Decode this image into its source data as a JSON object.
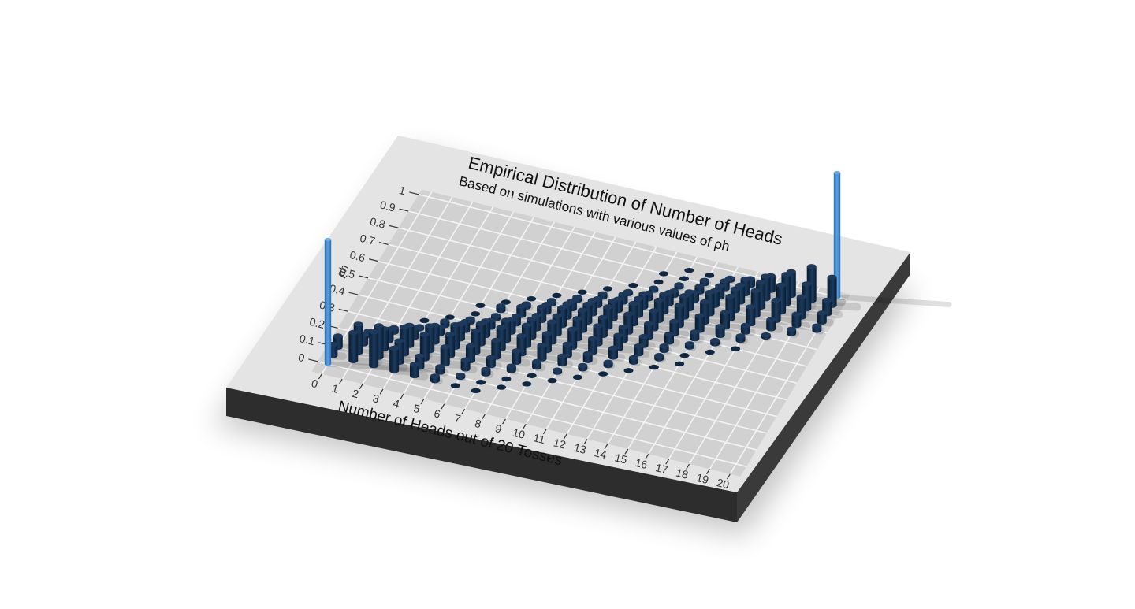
{
  "colors": {
    "page_background": "#ffffff",
    "panel_surface": "#e5e5e5",
    "panel_side": "#2f2f2f",
    "plot_background": "#d0d0d0",
    "grid_line": "#f2f2f2",
    "bar_color": "#0f2740",
    "highlight_bar_color": "#3a7fc4",
    "text": "#111111"
  },
  "chart_data": {
    "type": "bar",
    "style": "3d-rendered ggplot panel, tilted perspective",
    "title": "Empirical Distribution of Number of Heads",
    "subtitle": "Based on simulations with various values of ρh",
    "xlabel": "Number of Heads out of 20 Tosses",
    "ylabel": "ρh",
    "x_ticks": [
      "0",
      "1",
      "2",
      "3",
      "4",
      "5",
      "6",
      "7",
      "8",
      "9",
      "10",
      "11",
      "12",
      "13",
      "14",
      "15",
      "16",
      "17",
      "18",
      "19",
      "20"
    ],
    "y_ticks": [
      "0",
      "0.1",
      "0.2",
      "0.3",
      "0.4",
      "0.5",
      "0.6",
      "0.7",
      "0.8",
      "0.9",
      "1"
    ],
    "xlim": [
      0,
      20
    ],
    "ylim": [
      0,
      1
    ],
    "grid": true,
    "legend": "none",
    "series": [
      {
        "rho": 0.05,
        "heads": [
          0,
          1,
          2,
          3,
          4,
          5,
          6,
          7
        ],
        "heights": [
          0.1,
          0.25,
          0.3,
          0.2,
          0.1,
          0.04,
          0.01,
          0.005
        ]
      },
      {
        "rho": 0.1,
        "heads": [
          0,
          1,
          2,
          3,
          4,
          5,
          6,
          7,
          8
        ],
        "heights": [
          0.1,
          0.25,
          0.28,
          0.19,
          0.1,
          0.05,
          0.02,
          0.01,
          0.005
        ]
      },
      {
        "rho": 0.15,
        "heads": [
          1,
          2,
          3,
          4,
          5,
          6,
          7,
          8,
          9
        ],
        "heights": [
          0.08,
          0.18,
          0.24,
          0.22,
          0.15,
          0.08,
          0.04,
          0.01,
          0.005
        ]
      },
      {
        "rho": 0.2,
        "heads": [
          1,
          2,
          3,
          4,
          5,
          6,
          7,
          8,
          9,
          10
        ],
        "heights": [
          0.04,
          0.1,
          0.18,
          0.22,
          0.19,
          0.13,
          0.07,
          0.04,
          0.01,
          0.005
        ]
      },
      {
        "rho": 0.25,
        "heads": [
          2,
          3,
          4,
          5,
          6,
          7,
          8,
          9,
          10,
          11
        ],
        "heights": [
          0.04,
          0.08,
          0.15,
          0.2,
          0.19,
          0.15,
          0.1,
          0.05,
          0.02,
          0.005
        ]
      },
      {
        "rho": 0.3,
        "heads": [
          3,
          4,
          5,
          6,
          7,
          8,
          9,
          10,
          11,
          12
        ],
        "heights": [
          0.02,
          0.06,
          0.13,
          0.18,
          0.19,
          0.16,
          0.12,
          0.07,
          0.03,
          0.005
        ]
      },
      {
        "rho": 0.35,
        "heads": [
          3,
          4,
          5,
          6,
          7,
          8,
          9,
          10,
          11,
          12,
          13
        ],
        "heights": [
          0.01,
          0.04,
          0.08,
          0.13,
          0.18,
          0.18,
          0.15,
          0.1,
          0.06,
          0.03,
          0.005
        ]
      },
      {
        "rho": 0.4,
        "heads": [
          4,
          5,
          6,
          7,
          8,
          9,
          10,
          11,
          12,
          13,
          14
        ],
        "heights": [
          0.01,
          0.03,
          0.06,
          0.11,
          0.16,
          0.18,
          0.16,
          0.12,
          0.08,
          0.04,
          0.005
        ]
      },
      {
        "rho": 0.45,
        "heads": [
          5,
          6,
          7,
          8,
          9,
          10,
          11,
          12,
          13,
          14,
          15
        ],
        "heights": [
          0.01,
          0.03,
          0.07,
          0.12,
          0.16,
          0.18,
          0.16,
          0.12,
          0.07,
          0.03,
          0.005
        ]
      },
      {
        "rho": 0.5,
        "heads": [
          5,
          6,
          7,
          8,
          9,
          10,
          11,
          12,
          13,
          14,
          15
        ],
        "heights": [
          0.005,
          0.04,
          0.08,
          0.12,
          0.16,
          0.18,
          0.16,
          0.12,
          0.08,
          0.04,
          0.005
        ]
      },
      {
        "rho": 0.55,
        "heads": [
          6,
          7,
          8,
          9,
          10,
          11,
          12,
          13,
          14,
          15,
          16
        ],
        "heights": [
          0.005,
          0.03,
          0.07,
          0.12,
          0.16,
          0.18,
          0.16,
          0.12,
          0.07,
          0.03,
          0.01
        ]
      },
      {
        "rho": 0.6,
        "heads": [
          7,
          8,
          9,
          10,
          11,
          12,
          13,
          14,
          15,
          16,
          17
        ],
        "heights": [
          0.01,
          0.03,
          0.07,
          0.12,
          0.16,
          0.18,
          0.16,
          0.11,
          0.06,
          0.03,
          0.01
        ]
      },
      {
        "rho": 0.65,
        "heads": [
          8,
          9,
          10,
          11,
          12,
          13,
          14,
          15,
          16,
          17
        ],
        "heights": [
          0.01,
          0.03,
          0.06,
          0.1,
          0.15,
          0.18,
          0.18,
          0.13,
          0.08,
          0.04
        ]
      },
      {
        "rho": 0.7,
        "heads": [
          9,
          10,
          11,
          12,
          13,
          14,
          15,
          16,
          17,
          18
        ],
        "heights": [
          0.01,
          0.03,
          0.07,
          0.12,
          0.16,
          0.19,
          0.18,
          0.13,
          0.06,
          0.02
        ]
      },
      {
        "rho": 0.75,
        "heads": [
          10,
          11,
          12,
          13,
          14,
          15,
          16,
          17,
          18,
          19
        ],
        "heights": [
          0.01,
          0.02,
          0.05,
          0.1,
          0.15,
          0.19,
          0.2,
          0.15,
          0.08,
          0.04
        ]
      },
      {
        "rho": 0.8,
        "heads": [
          11,
          12,
          13,
          14,
          15,
          16,
          17,
          18,
          19,
          20
        ],
        "heights": [
          0.01,
          0.02,
          0.04,
          0.07,
          0.13,
          0.19,
          0.22,
          0.18,
          0.1,
          0.04
        ]
      },
      {
        "rho": 0.85,
        "heads": [
          12,
          13,
          14,
          15,
          16,
          17,
          18,
          19,
          20
        ],
        "heights": [
          0.01,
          0.02,
          0.05,
          0.1,
          0.15,
          0.22,
          0.24,
          0.18,
          0.08
        ]
      },
      {
        "rho": 0.9,
        "heads": [
          12,
          13,
          14,
          15,
          16,
          17,
          18,
          19,
          20
        ],
        "heights": [
          0.005,
          0.01,
          0.03,
          0.07,
          0.13,
          0.2,
          0.26,
          0.22,
          0.12
        ]
      },
      {
        "rho": 0.95,
        "heads": [
          13,
          14,
          15,
          16,
          17,
          18,
          19,
          20
        ],
        "heights": [
          0.005,
          0.01,
          0.02,
          0.06,
          0.13,
          0.21,
          0.3,
          0.25
        ]
      }
    ],
    "highlighted_bars": [
      {
        "rho": 0.0,
        "heads": 0,
        "height": 1
      },
      {
        "rho": 1.0,
        "heads": 20,
        "height": 1
      }
    ]
  }
}
